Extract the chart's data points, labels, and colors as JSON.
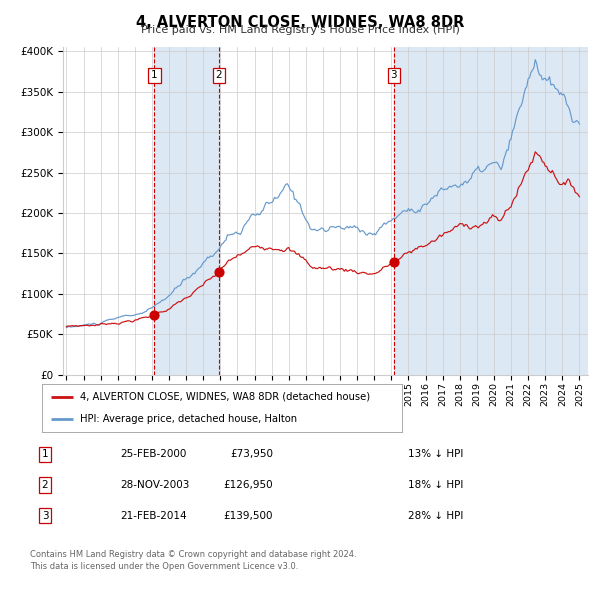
{
  "title": "4, ALVERTON CLOSE, WIDNES, WA8 8DR",
  "subtitle": "Price paid vs. HM Land Registry's House Price Index (HPI)",
  "legend_red": "4, ALVERTON CLOSE, WIDNES, WA8 8DR (detached house)",
  "legend_blue": "HPI: Average price, detached house, Halton",
  "ylim": [
    0,
    400000
  ],
  "yticks": [
    0,
    50000,
    100000,
    150000,
    200000,
    250000,
    300000,
    350000,
    400000
  ],
  "ytick_labels": [
    "£0",
    "£50K",
    "£100K",
    "£150K",
    "£200K",
    "£250K",
    "£300K",
    "£350K",
    "£400K"
  ],
  "sale1_date": 2000.14,
  "sale1_price": 73950,
  "sale2_date": 2003.91,
  "sale2_price": 126950,
  "sale3_date": 2014.14,
  "sale3_price": 139500,
  "shade_color": "#dce9f5",
  "vline_color": "#cc0000",
  "red_line_color": "#cc1111",
  "blue_line_color": "#6699cc",
  "marker_color": "#cc0000",
  "grid_color": "#cccccc",
  "bg_color": "#ffffff",
  "table_rows": [
    [
      "1",
      "25-FEB-2000",
      "£73,950",
      "13% ↓ HPI"
    ],
    [
      "2",
      "28-NOV-2003",
      "£126,950",
      "18% ↓ HPI"
    ],
    [
      "3",
      "21-FEB-2014",
      "£139,500",
      "28% ↓ HPI"
    ]
  ],
  "footnote1": "Contains HM Land Registry data © Crown copyright and database right 2024.",
  "footnote2": "This data is licensed under the Open Government Licence v3.0."
}
